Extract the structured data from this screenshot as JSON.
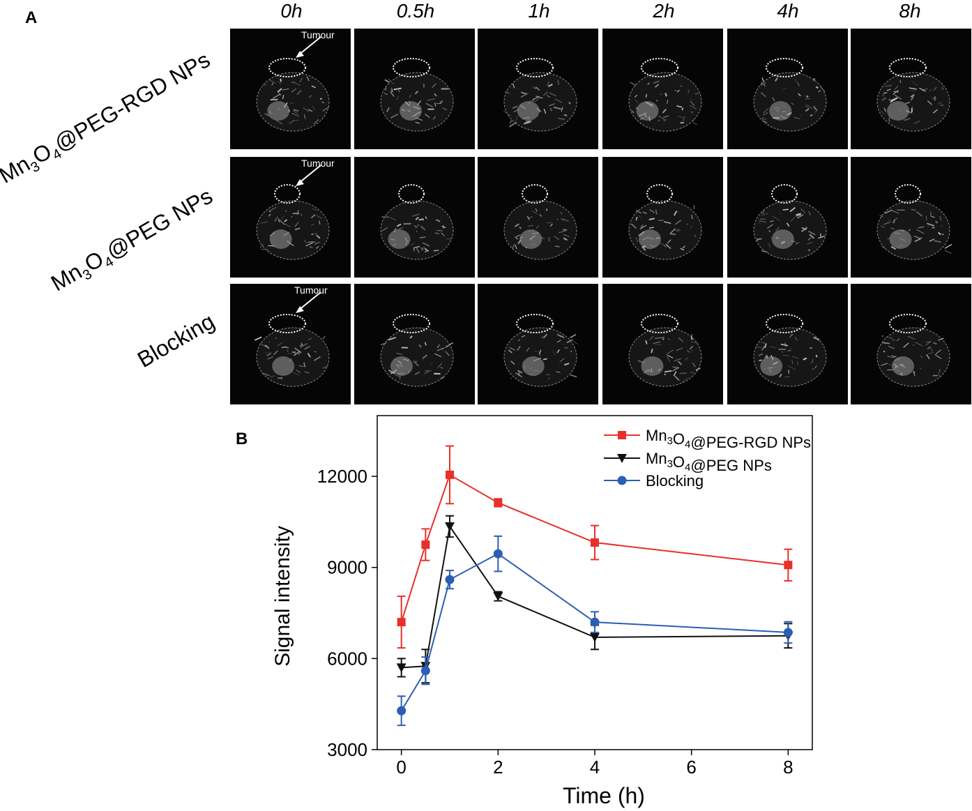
{
  "panel_a": {
    "letter": "A",
    "time_labels": [
      "0h",
      "0.5h",
      "1h",
      "2h",
      "4h",
      "8h"
    ],
    "rows": [
      {
        "prefix": "Mn",
        "sub1": "3",
        "mid": "O",
        "sub2": "4",
        "suffix": "@PEG-RGD NPs"
      },
      {
        "prefix": "Mn",
        "sub1": "3",
        "mid": "O",
        "sub2": "4",
        "suffix": "@PEG NPs"
      },
      {
        "prefix": "",
        "sub1": "",
        "mid": "",
        "sub2": "",
        "suffix": "Blocking"
      }
    ],
    "tumour_label": "Tumour"
  },
  "panel_b": {
    "letter": "B"
  },
  "chart_data": {
    "type": "line",
    "xlabel": "Time (h)",
    "ylabel": "Signal intensity",
    "xlim": [
      -0.5,
      8.5
    ],
    "ylim": [
      3000,
      14000
    ],
    "xticks": [
      0,
      2,
      4,
      6,
      8
    ],
    "yticks": [
      3000,
      6000,
      9000,
      12000
    ],
    "legend_position": "top-right",
    "x": [
      0,
      0.5,
      1,
      2,
      4,
      8
    ],
    "series": [
      {
        "name_prefix": "Mn",
        "name_sub1": "3",
        "name_mid": "O",
        "name_sub2": "4",
        "name_suffix": "@PEG-RGD NPs",
        "color": "#e8302a",
        "marker": "square",
        "values": [
          7200,
          9750,
          12050,
          11130,
          9820,
          9080
        ],
        "errors": [
          850,
          520,
          950,
          130,
          560,
          520
        ]
      },
      {
        "name_prefix": "Mn",
        "name_sub1": "3",
        "name_mid": "O",
        "name_sub2": "4",
        "name_suffix": "@PEG NPs",
        "color": "#111111",
        "marker": "triangle-down",
        "values": [
          5700,
          5750,
          10350,
          8050,
          6700,
          6750
        ],
        "errors": [
          300,
          550,
          350,
          150,
          400,
          400
        ]
      },
      {
        "name_prefix": "",
        "name_sub1": "",
        "name_mid": "",
        "name_sub2": "",
        "name_suffix": "Blocking",
        "color": "#2c5eb3",
        "marker": "circle",
        "values": [
          4280,
          5600,
          8600,
          9450,
          7200,
          6860
        ],
        "errors": [
          480,
          450,
          300,
          580,
          340,
          350
        ]
      }
    ]
  }
}
